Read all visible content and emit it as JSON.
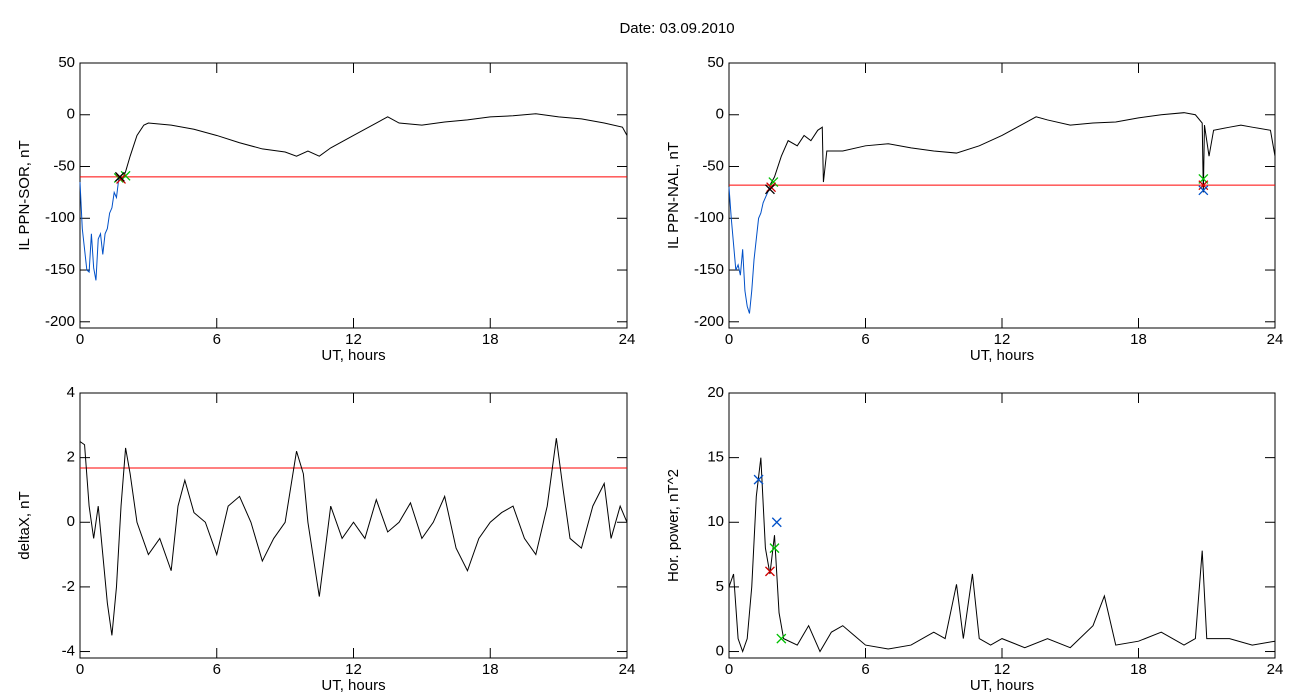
{
  "title": "Date:  03.09.2010",
  "chart_data": [
    {
      "type": "line",
      "ylabel": "IL PPN-SOR, nT",
      "xlabel": "UT, hours",
      "xlim": [
        0,
        24
      ],
      "xticks": [
        0,
        6,
        12,
        18,
        24
      ],
      "ylim": [
        -206,
        50
      ],
      "yticks": [
        -200,
        -150,
        -100,
        -50,
        0,
        50
      ],
      "hline": {
        "value": -60,
        "color": "#ff0000"
      },
      "series": [
        {
          "color": "#000000",
          "x": [
            1.9,
            2.0,
            2.2,
            2.5,
            2.8,
            3,
            4,
            5,
            6,
            7,
            8,
            9,
            9.5,
            10,
            10.5,
            11,
            12,
            13,
            13.5,
            14,
            15,
            16,
            17,
            18,
            19,
            20,
            21,
            22,
            23,
            23.8,
            24
          ],
          "values": [
            -60,
            -55,
            -40,
            -20,
            -10,
            -8,
            -10,
            -14,
            -20,
            -27,
            -33,
            -36,
            -40,
            -35,
            -40,
            -32,
            -20,
            -8,
            -2,
            -8,
            -10,
            -7,
            -5,
            -2,
            -1,
            1,
            -2,
            -4,
            -8,
            -12,
            -20
          ]
        },
        {
          "color": "#0050c8",
          "x": [
            0,
            0.1,
            0.2,
            0.3,
            0.4,
            0.5,
            0.6,
            0.7,
            0.8,
            0.9,
            1.0,
            1.1,
            1.2,
            1.3,
            1.4,
            1.5,
            1.6,
            1.7,
            1.8,
            1.9
          ],
          "values": [
            -65,
            -110,
            -130,
            -150,
            -152,
            -115,
            -148,
            -160,
            -120,
            -115,
            -135,
            -115,
            -110,
            -95,
            -90,
            -75,
            -80,
            -62,
            -62,
            -60
          ]
        },
        {
          "marker": "x",
          "color": "#00c000",
          "x": [
            1.7,
            2.0
          ],
          "values": [
            -61,
            -59
          ]
        },
        {
          "marker": "x",
          "color": "#d00000",
          "x": [
            1.8
          ],
          "values": [
            -62
          ]
        },
        {
          "marker": "x",
          "color": "#000000",
          "x": [
            1.75
          ],
          "values": [
            -60
          ]
        }
      ]
    },
    {
      "type": "line",
      "ylabel": "IL PPN-NAL, nT",
      "xlabel": "UT, hours",
      "xlim": [
        0,
        24
      ],
      "xticks": [
        0,
        6,
        12,
        18,
        24
      ],
      "ylim": [
        -206,
        50
      ],
      "yticks": [
        -200,
        -150,
        -100,
        -50,
        0,
        50
      ],
      "hline": {
        "value": -68,
        "color": "#ff0000"
      },
      "series": [
        {
          "color": "#000000",
          "x": [
            1.8,
            2,
            2.3,
            2.6,
            3,
            3.3,
            3.6,
            3.9,
            4.1,
            4.15,
            4.3,
            5,
            6,
            7,
            8,
            9,
            10,
            11,
            12,
            13,
            13.5,
            14,
            15,
            16,
            17,
            18,
            19,
            20,
            20.5,
            20.8,
            20.85,
            20.9,
            21.1,
            21.3,
            22,
            22.5,
            23,
            23.8,
            24
          ],
          "values": [
            -68,
            -60,
            -40,
            -25,
            -30,
            -20,
            -25,
            -15,
            -12,
            -65,
            -35,
            -35,
            -30,
            -28,
            -32,
            -35,
            -37,
            -30,
            -20,
            -8,
            -2,
            -5,
            -10,
            -8,
            -7,
            -3,
            0,
            2,
            0,
            -8,
            -75,
            -10,
            -40,
            -15,
            -12,
            -10,
            -12,
            -15,
            -40
          ]
        },
        {
          "color": "#0050c8",
          "x": [
            0,
            0.1,
            0.2,
            0.3,
            0.4,
            0.5,
            0.6,
            0.7,
            0.8,
            0.9,
            1.0,
            1.1,
            1.2,
            1.3,
            1.4,
            1.5,
            1.6,
            1.7,
            1.8
          ],
          "values": [
            -70,
            -100,
            -125,
            -150,
            -145,
            -155,
            -130,
            -170,
            -185,
            -192,
            -170,
            -140,
            -120,
            -100,
            -95,
            -85,
            -80,
            -75,
            -68
          ]
        },
        {
          "marker": "x",
          "color": "#00c000",
          "x": [
            1.95,
            20.85
          ],
          "values": [
            -65,
            -62
          ]
        },
        {
          "marker": "x",
          "color": "#d00000",
          "x": [
            1.85,
            20.85
          ],
          "values": [
            -70,
            -68
          ]
        },
        {
          "marker": "x",
          "color": "#0050c8",
          "x": [
            20.85
          ],
          "values": [
            -73
          ]
        },
        {
          "marker": "x",
          "color": "#000000",
          "x": [
            1.8
          ],
          "values": [
            -72
          ]
        }
      ]
    },
    {
      "type": "line",
      "ylabel": "deltaX, nT",
      "xlabel": "UT, hours",
      "xlim": [
        0,
        24
      ],
      "xticks": [
        0,
        6,
        12,
        18,
        24
      ],
      "ylim": [
        -4.2,
        4
      ],
      "yticks": [
        -4,
        -2,
        0,
        2,
        4
      ],
      "hline": {
        "value": 1.68,
        "color": "#ff0000"
      },
      "series": [
        {
          "color": "#000000",
          "x": [
            0,
            0.2,
            0.4,
            0.6,
            0.8,
            1.0,
            1.2,
            1.4,
            1.6,
            1.8,
            2.0,
            2.2,
            2.5,
            3,
            3.5,
            4,
            4.3,
            4.6,
            5,
            5.5,
            6,
            6.5,
            7,
            7.5,
            8,
            8.5,
            9,
            9.5,
            9.8,
            10,
            10.5,
            11,
            11.5,
            12,
            12.5,
            13,
            13.5,
            14,
            14.5,
            15,
            15.5,
            16,
            16.5,
            17,
            17.5,
            18,
            18.5,
            19,
            19.5,
            20,
            20.5,
            20.9,
            21.2,
            21.5,
            22,
            22.5,
            23,
            23.3,
            23.7,
            24
          ],
          "values": [
            2.5,
            2.4,
            0.5,
            -0.5,
            0.5,
            -1,
            -2.5,
            -3.5,
            -2,
            0.5,
            2.3,
            1.5,
            0,
            -1,
            -0.5,
            -1.5,
            0.5,
            1.3,
            0.3,
            0,
            -1,
            0.5,
            0.8,
            0,
            -1.2,
            -0.5,
            0,
            2.2,
            1.5,
            0,
            -2.3,
            0.5,
            -0.5,
            0,
            -0.5,
            0.7,
            -0.3,
            0,
            0.6,
            -0.5,
            0,
            0.8,
            -0.8,
            -1.5,
            -0.5,
            0,
            0.3,
            0.5,
            -0.5,
            -1,
            0.5,
            2.6,
            1,
            -0.5,
            -0.8,
            0.5,
            1.2,
            -0.5,
            0.5,
            0
          ]
        }
      ]
    },
    {
      "type": "line",
      "ylabel": "Hor. power, nT^2",
      "xlabel": "UT, hours",
      "xlim": [
        0,
        24
      ],
      "xticks": [
        0,
        6,
        12,
        18,
        24
      ],
      "ylim": [
        -0.5,
        20
      ],
      "yticks": [
        0,
        5,
        10,
        15,
        20
      ],
      "series": [
        {
          "color": "#000000",
          "x": [
            0,
            0.2,
            0.4,
            0.6,
            0.8,
            1.0,
            1.2,
            1.4,
            1.6,
            1.8,
            2.0,
            2.2,
            2.4,
            3,
            3.5,
            4,
            4.5,
            5,
            6,
            7,
            8,
            9,
            9.5,
            10,
            10.3,
            10.7,
            11,
            11.5,
            12,
            13,
            14,
            15,
            16,
            16.5,
            17,
            18,
            19,
            20,
            20.5,
            20.8,
            21,
            22,
            23,
            24
          ],
          "values": [
            5,
            6,
            1,
            0,
            1,
            5,
            12,
            15,
            8,
            6,
            9,
            3,
            1,
            0.5,
            2,
            0,
            1.5,
            2,
            0.5,
            0.2,
            0.5,
            1.5,
            1,
            5.2,
            1,
            6,
            1,
            0.5,
            1,
            0.3,
            1,
            0.3,
            2,
            4.3,
            0.5,
            0.8,
            1.5,
            0.5,
            1,
            7.8,
            1,
            1,
            0.5,
            0.8
          ]
        },
        {
          "marker": "x",
          "color": "#0050c8",
          "x": [
            1.3,
            2.1
          ],
          "values": [
            13.3,
            10
          ]
        },
        {
          "marker": "x",
          "color": "#d00000",
          "x": [
            1.8
          ],
          "values": [
            6.2
          ]
        },
        {
          "marker": "x",
          "color": "#00c000",
          "x": [
            2.0,
            2.3
          ],
          "values": [
            8,
            1
          ]
        }
      ]
    }
  ]
}
